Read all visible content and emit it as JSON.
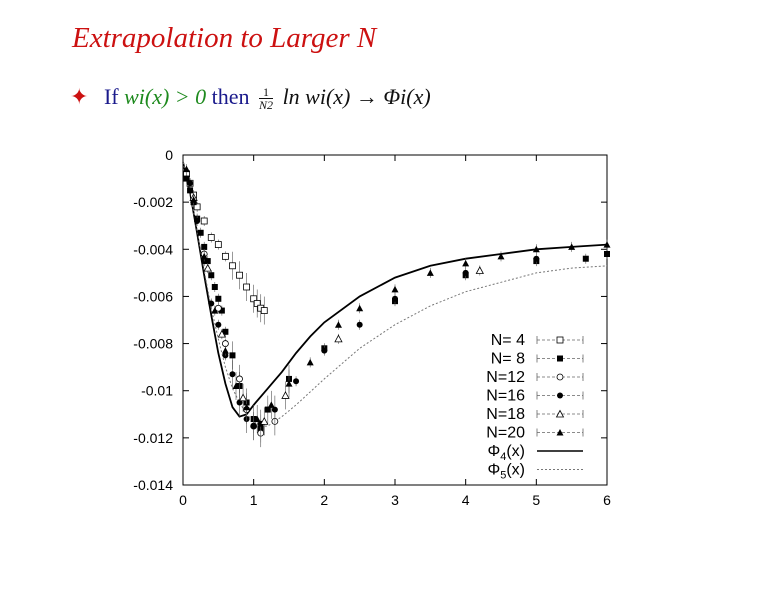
{
  "slide": {
    "title": "Extrapolation to Larger N",
    "bullet": {
      "if_word": "If",
      "condition": "wi(x) > 0",
      "then_word": "then",
      "frac_num": "1",
      "frac_den": "N2",
      "expression": "ln wi(x) → Φi(x)"
    }
  },
  "colors": {
    "title": "#cc1111",
    "bullet_text": "#1a1a8c",
    "condition": "#1e8a1e",
    "bullet_icon": "#cc1111"
  },
  "chart_data": {
    "type": "scatter",
    "xlim": [
      0,
      6
    ],
    "ylim": [
      -0.014,
      0
    ],
    "x_ticks": [
      "0",
      "1",
      "2",
      "3",
      "4",
      "5",
      "6"
    ],
    "y_ticks": [
      "0",
      "-0.002",
      "-0.004",
      "-0.006",
      "-0.008",
      "-0.01",
      "-0.012",
      "-0.014"
    ],
    "legend_position": "right",
    "grid": false,
    "series": [
      {
        "name": "N= 4",
        "marker": "open-square",
        "points": [
          [
            0.05,
            -0.0008
          ],
          [
            0.1,
            -0.0012
          ],
          [
            0.15,
            -0.0017
          ],
          [
            0.2,
            -0.0022
          ],
          [
            0.3,
            -0.0028
          ],
          [
            0.4,
            -0.0035
          ],
          [
            0.5,
            -0.0038
          ],
          [
            0.6,
            -0.0043
          ],
          [
            0.7,
            -0.0047
          ],
          [
            0.8,
            -0.0051
          ],
          [
            0.9,
            -0.0056
          ],
          [
            1.0,
            -0.0061
          ],
          [
            1.05,
            -0.0063
          ],
          [
            1.1,
            -0.0065
          ],
          [
            1.15,
            -0.0066
          ]
        ]
      },
      {
        "name": "N= 8",
        "marker": "filled-square",
        "points": [
          [
            0.05,
            -0.001
          ],
          [
            0.1,
            -0.0015
          ],
          [
            0.15,
            -0.002
          ],
          [
            0.2,
            -0.0027
          ],
          [
            0.25,
            -0.0033
          ],
          [
            0.3,
            -0.0039
          ],
          [
            0.35,
            -0.0045
          ],
          [
            0.4,
            -0.0051
          ],
          [
            0.45,
            -0.0056
          ],
          [
            0.5,
            -0.0061
          ],
          [
            0.55,
            -0.0066
          ],
          [
            0.6,
            -0.0075
          ],
          [
            0.7,
            -0.0085
          ],
          [
            0.8,
            -0.0098
          ],
          [
            0.9,
            -0.0105
          ],
          [
            1.0,
            -0.0112
          ],
          [
            1.1,
            -0.0116
          ],
          [
            1.2,
            -0.0108
          ],
          [
            1.5,
            -0.0095
          ],
          [
            2.0,
            -0.0082
          ],
          [
            3.0,
            -0.0062
          ],
          [
            4.0,
            -0.0051
          ],
          [
            5.0,
            -0.0045
          ],
          [
            5.7,
            -0.0044
          ],
          [
            6.0,
            -0.0042
          ]
        ]
      },
      {
        "name": "N=12",
        "marker": "open-circle",
        "points": [
          [
            0.3,
            -0.0042
          ],
          [
            0.5,
            -0.0065
          ],
          [
            0.6,
            -0.008
          ],
          [
            0.8,
            -0.0095
          ],
          [
            0.9,
            -0.0108
          ],
          [
            1.0,
            -0.0115
          ],
          [
            1.1,
            -0.0118
          ],
          [
            1.3,
            -0.0113
          ]
        ]
      },
      {
        "name": "N=16",
        "marker": "filled-circle",
        "points": [
          [
            0.1,
            -0.0012
          ],
          [
            0.2,
            -0.0028
          ],
          [
            0.3,
            -0.0045
          ],
          [
            0.4,
            -0.0063
          ],
          [
            0.5,
            -0.0072
          ],
          [
            0.6,
            -0.0085
          ],
          [
            0.7,
            -0.0093
          ],
          [
            0.8,
            -0.0105
          ],
          [
            0.9,
            -0.0112
          ],
          [
            1.0,
            -0.0115
          ],
          [
            1.1,
            -0.0114
          ],
          [
            1.3,
            -0.0108
          ],
          [
            1.6,
            -0.0096
          ],
          [
            2.0,
            -0.0083
          ],
          [
            2.5,
            -0.0072
          ],
          [
            3.0,
            -0.0061
          ],
          [
            4.0,
            -0.005
          ],
          [
            5.0,
            -0.0044
          ]
        ]
      },
      {
        "name": "N=18",
        "marker": "open-triangle",
        "points": [
          [
            0.15,
            -0.0018
          ],
          [
            0.35,
            -0.0048
          ],
          [
            0.55,
            -0.0076
          ],
          [
            0.85,
            -0.0103
          ],
          [
            1.15,
            -0.0113
          ],
          [
            1.45,
            -0.0102
          ],
          [
            2.2,
            -0.0078
          ],
          [
            4.2,
            -0.0049
          ]
        ]
      },
      {
        "name": "N=20",
        "marker": "filled-triangle",
        "points": [
          [
            0.05,
            -0.0006
          ],
          [
            0.15,
            -0.0019
          ],
          [
            0.3,
            -0.0043
          ],
          [
            0.45,
            -0.0066
          ],
          [
            0.6,
            -0.0083
          ],
          [
            0.75,
            -0.0098
          ],
          [
            0.9,
            -0.0107
          ],
          [
            1.05,
            -0.0112
          ],
          [
            1.25,
            -0.0106
          ],
          [
            1.5,
            -0.0097
          ],
          [
            1.8,
            -0.0088
          ],
          [
            2.2,
            -0.0072
          ],
          [
            2.5,
            -0.0065
          ],
          [
            3.0,
            -0.0057
          ],
          [
            3.5,
            -0.005
          ],
          [
            4.0,
            -0.0046
          ],
          [
            4.5,
            -0.0043
          ],
          [
            5.0,
            -0.004
          ],
          [
            5.5,
            -0.0039
          ],
          [
            6.0,
            -0.0038
          ]
        ]
      },
      {
        "name": "Φ4(x)",
        "style": "solid",
        "points": [
          [
            0,
            -0.0003
          ],
          [
            0.1,
            -0.0016
          ],
          [
            0.2,
            -0.0033
          ],
          [
            0.3,
            -0.0051
          ],
          [
            0.4,
            -0.0068
          ],
          [
            0.5,
            -0.0084
          ],
          [
            0.6,
            -0.0097
          ],
          [
            0.7,
            -0.0107
          ],
          [
            0.8,
            -0.0111
          ],
          [
            0.9,
            -0.011
          ],
          [
            1.0,
            -0.0106
          ],
          [
            1.2,
            -0.0099
          ],
          [
            1.4,
            -0.0092
          ],
          [
            1.6,
            -0.0084
          ],
          [
            1.8,
            -0.0077
          ],
          [
            2.0,
            -0.0071
          ],
          [
            2.5,
            -0.006
          ],
          [
            3.0,
            -0.0052
          ],
          [
            3.5,
            -0.0047
          ],
          [
            4.0,
            -0.0044
          ],
          [
            4.5,
            -0.0042
          ],
          [
            5.0,
            -0.004
          ],
          [
            5.5,
            -0.0039
          ],
          [
            6.0,
            -0.0038
          ]
        ]
      },
      {
        "name": "Φ5(x)",
        "style": "dotted",
        "points": [
          [
            0,
            -0.0003
          ],
          [
            0.1,
            -0.0016
          ],
          [
            0.2,
            -0.0032
          ],
          [
            0.3,
            -0.0049
          ],
          [
            0.4,
            -0.0065
          ],
          [
            0.5,
            -0.0078
          ],
          [
            0.6,
            -0.009
          ],
          [
            0.7,
            -0.0099
          ],
          [
            0.8,
            -0.0105
          ],
          [
            0.9,
            -0.011
          ],
          [
            1.0,
            -0.0113
          ],
          [
            1.1,
            -0.0115
          ],
          [
            1.2,
            -0.0115
          ],
          [
            1.4,
            -0.0111
          ],
          [
            1.6,
            -0.0106
          ],
          [
            2.0,
            -0.0095
          ],
          [
            2.5,
            -0.0082
          ],
          [
            3.0,
            -0.0072
          ],
          [
            3.5,
            -0.0064
          ],
          [
            4.0,
            -0.0058
          ],
          [
            4.5,
            -0.0054
          ],
          [
            5.0,
            -0.005
          ],
          [
            5.5,
            -0.0048
          ],
          [
            6.0,
            -0.0047
          ]
        ]
      }
    ]
  }
}
